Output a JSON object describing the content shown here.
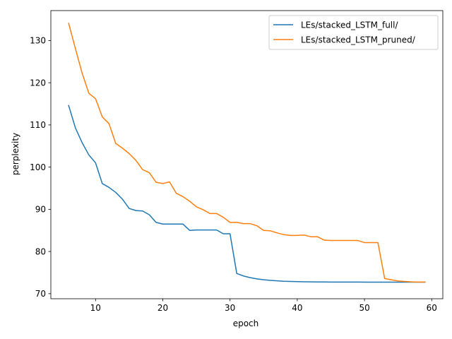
{
  "chart_data": {
    "type": "line",
    "xlabel": "epoch",
    "ylabel": "perplexity",
    "xlim": [
      3.35,
      61.65
    ],
    "ylim": [
      68.8,
      137.1
    ],
    "xticks": [
      10,
      20,
      30,
      40,
      50,
      60
    ],
    "yticks": [
      70,
      80,
      90,
      100,
      110,
      120,
      130
    ],
    "grid": false,
    "legend_position": "top-right",
    "series": [
      {
        "name": "LEs/stacked_LSTM_full/",
        "color": "#1f77b4",
        "x": [
          6,
          7,
          8,
          9,
          10,
          11,
          12,
          13,
          14,
          15,
          16,
          17,
          18,
          19,
          20,
          21,
          22,
          23,
          24,
          25,
          26,
          27,
          28,
          29,
          30,
          31,
          32,
          33,
          34,
          35,
          36,
          37,
          38,
          39,
          40,
          41,
          42,
          43,
          44,
          45,
          46,
          47,
          48,
          49,
          50,
          51,
          52,
          53,
          54,
          55,
          56,
          57,
          58,
          59
        ],
        "values": [
          114.6,
          109.3,
          105.8,
          102.9,
          101.0,
          96.1,
          95.2,
          94.0,
          92.4,
          90.2,
          89.7,
          89.6,
          88.7,
          86.9,
          86.5,
          86.5,
          86.5,
          86.5,
          85.0,
          85.1,
          85.1,
          85.1,
          85.1,
          84.2,
          84.2,
          74.8,
          74.2,
          73.8,
          73.5,
          73.3,
          73.15,
          73.05,
          72.95,
          72.9,
          72.85,
          72.82,
          72.8,
          72.78,
          72.77,
          72.76,
          72.76,
          72.75,
          72.75,
          72.75,
          72.74,
          72.74,
          72.74,
          72.74,
          72.74,
          72.74,
          72.74,
          72.74,
          72.74,
          72.74
        ]
      },
      {
        "name": "LEs/stacked_LSTM_pruned/",
        "color": "#ff7f0e",
        "x": [
          6,
          7,
          8,
          9,
          10,
          11,
          12,
          13,
          14,
          15,
          16,
          17,
          18,
          19,
          20,
          21,
          22,
          23,
          24,
          25,
          26,
          27,
          28,
          29,
          30,
          31,
          32,
          33,
          34,
          35,
          36,
          37,
          38,
          39,
          40,
          41,
          42,
          43,
          44,
          45,
          46,
          47,
          48,
          49,
          50,
          51,
          52,
          53,
          54,
          55,
          56,
          57,
          58,
          59
        ],
        "values": [
          134.1,
          128.1,
          122.3,
          117.5,
          116.2,
          111.9,
          110.3,
          105.6,
          104.5,
          103.2,
          101.6,
          99.4,
          98.7,
          96.4,
          96.1,
          96.5,
          93.8,
          93.0,
          91.9,
          90.6,
          89.9,
          89.0,
          89.0,
          88.1,
          86.9,
          86.9,
          86.6,
          86.6,
          86.1,
          85.0,
          84.9,
          84.4,
          84.0,
          83.8,
          83.8,
          83.9,
          83.5,
          83.5,
          82.7,
          82.6,
          82.6,
          82.6,
          82.6,
          82.6,
          82.1,
          82.1,
          82.1,
          73.6,
          73.3,
          73.0,
          72.9,
          72.8,
          72.75,
          72.75
        ]
      }
    ]
  }
}
